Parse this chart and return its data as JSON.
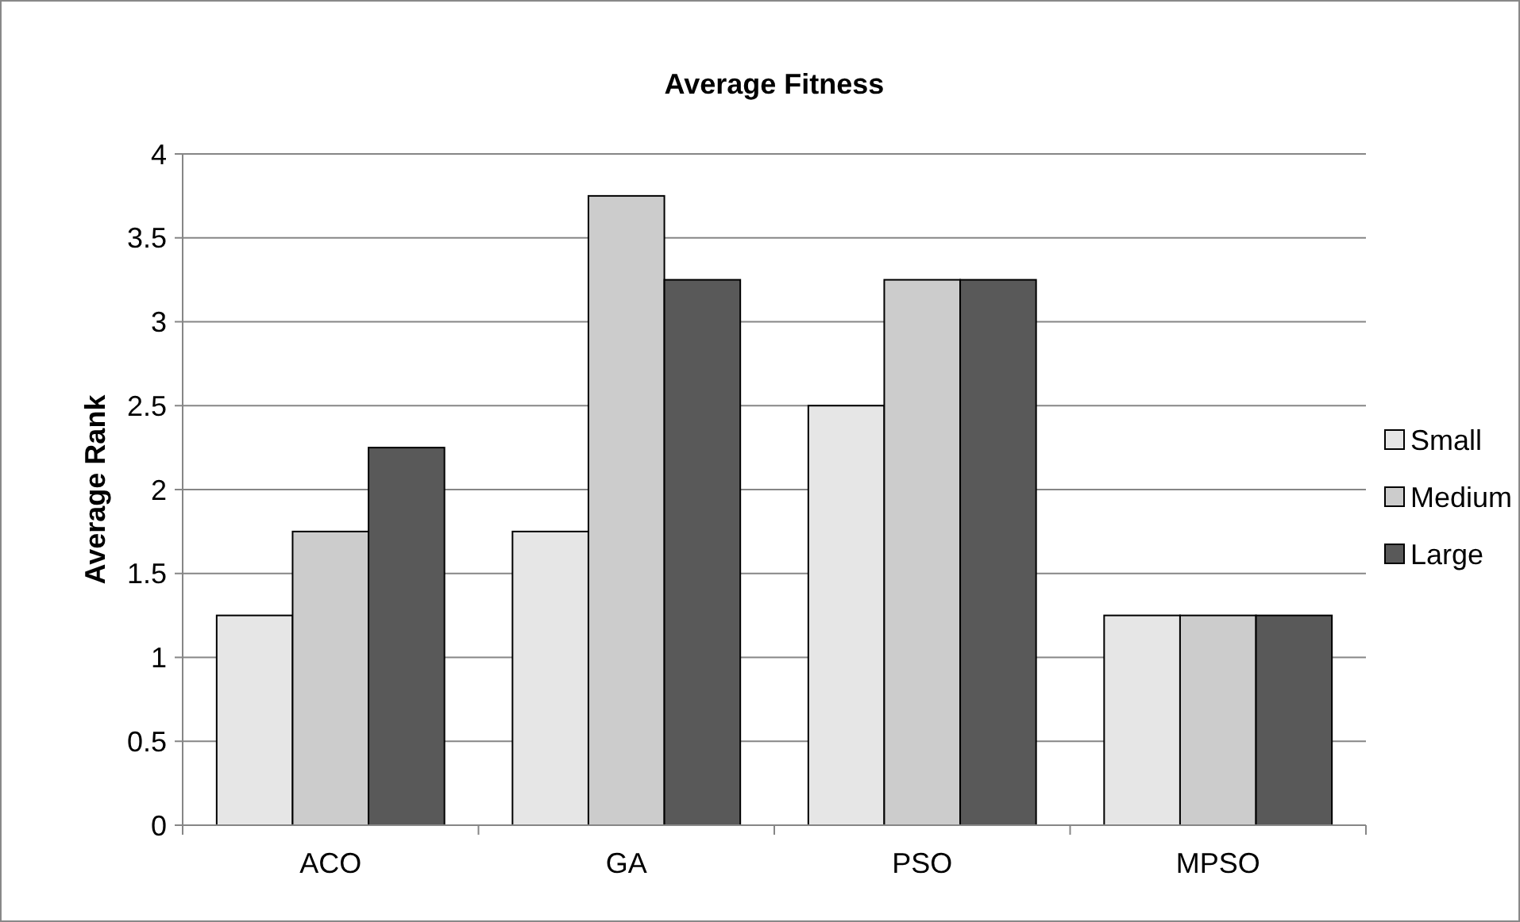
{
  "chart_data": {
    "type": "bar",
    "title": "Average Fitness",
    "ylabel": "Average Rank",
    "categories": [
      "ACO",
      "GA",
      "PSO",
      "MPSO"
    ],
    "series": [
      {
        "name": "Small",
        "color": "#e6e6e6",
        "values": [
          1.25,
          1.75,
          2.5,
          1.25
        ]
      },
      {
        "name": "Medium",
        "color": "#cccccc",
        "values": [
          1.75,
          3.75,
          3.25,
          1.25
        ]
      },
      {
        "name": "Large",
        "color": "#595959",
        "values": [
          2.25,
          3.25,
          3.25,
          1.25
        ]
      }
    ],
    "ylim": [
      0,
      4
    ],
    "yticks": [
      0,
      0.5,
      1,
      1.5,
      2,
      2.5,
      3,
      3.5,
      4
    ],
    "grid": "y",
    "legend": "right"
  }
}
